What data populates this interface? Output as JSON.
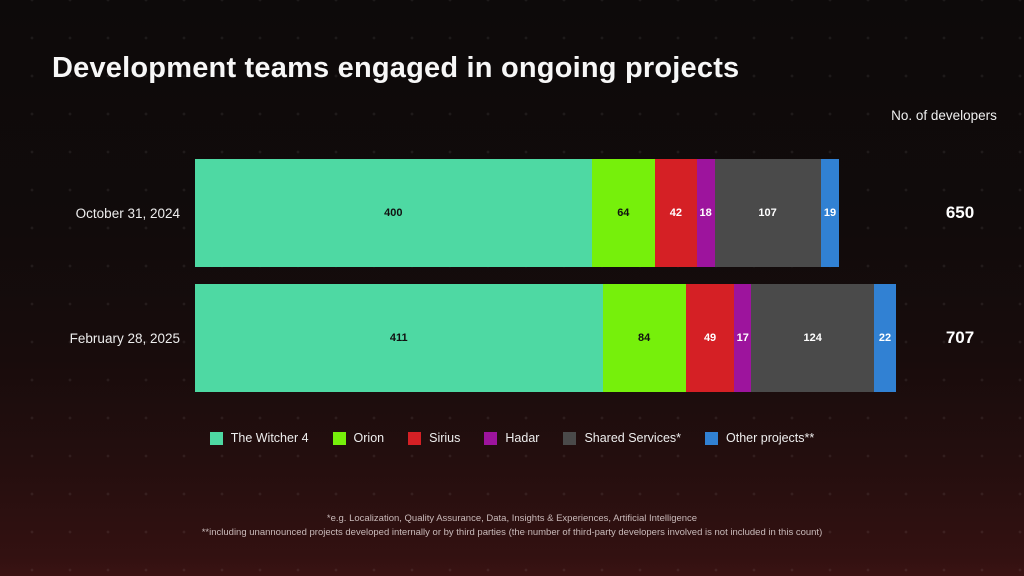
{
  "slide": {
    "title": "Development teams engaged in ongoing projects",
    "developers_header": "No. of developers",
    "footnotes": [
      "*e.g. Localization, Quality Assurance, Data, Insights & Experiences, Artificial Intelligence",
      "**including unannounced projects developed internally or by third parties (the number of third-party developers involved is not included in this count)"
    ]
  },
  "chart_data": {
    "type": "bar",
    "orientation": "horizontal",
    "stacked": true,
    "value_labels": true,
    "legend_position": "bottom",
    "categories": [
      "October 31, 2024",
      "February 28, 2025"
    ],
    "series": [
      {
        "name": "The Witcher 4",
        "color": "#4ed9a3",
        "values": [
          400,
          411
        ]
      },
      {
        "name": "Orion",
        "color": "#76f00b",
        "values": [
          64,
          84
        ]
      },
      {
        "name": "Sirius",
        "color": "#d52025",
        "values": [
          42,
          49
        ]
      },
      {
        "name": "Hadar",
        "color": "#9d149d",
        "values": [
          18,
          17
        ]
      },
      {
        "name": "Shared Services*",
        "color": "#4a4a4a",
        "values": [
          107,
          124
        ]
      },
      {
        "name": "Other projects**",
        "color": "#3181d3",
        "values": [
          19,
          22
        ]
      }
    ],
    "totals": [
      650,
      707
    ],
    "totals_axis_label": "No. of developers"
  }
}
